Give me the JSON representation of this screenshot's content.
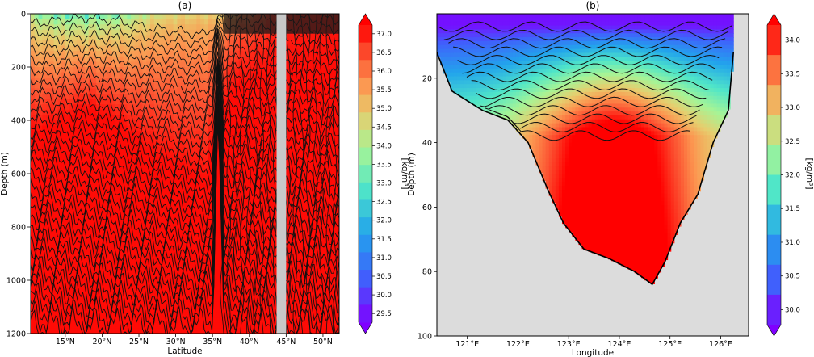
{
  "chart_data": [
    {
      "type": "heatmap",
      "title": "(a)",
      "xlabel": "Latitude",
      "ylabel": "Depth (m)",
      "x_ticks": [
        "15°N",
        "20°N",
        "25°N",
        "30°N",
        "35°N",
        "40°N",
        "45°N",
        "50°N"
      ],
      "x_values": [
        15,
        20,
        25,
        30,
        35,
        40,
        45,
        50
      ],
      "xlim": [
        10.3,
        52.2
      ],
      "y_ticks": [
        "0",
        "200",
        "400",
        "600",
        "800",
        "1000",
        "1200"
      ],
      "y_values": [
        0,
        200,
        400,
        600,
        800,
        1000,
        1200
      ],
      "ylim": [
        0,
        1200
      ],
      "y_inverted": true,
      "colorbar": {
        "label": "[kg/m³]",
        "ticks": [
          "29.5",
          "30.0",
          "30.5",
          "31.0",
          "31.5",
          "32.0",
          "32.5",
          "33.0",
          "33.5",
          "34.0",
          "34.5",
          "35.0",
          "35.5",
          "36.0",
          "36.5",
          "37.0"
        ],
        "min": 29.5,
        "max": 37.0,
        "extend": "both",
        "colormap": "rainbow"
      },
      "profile": [
        {
          "lat": 10.3,
          "surface": 33.5,
          "mixed_depth": 130
        },
        {
          "lat": 14.0,
          "surface": 33.0,
          "mixed_depth": 110
        },
        {
          "lat": 18.0,
          "surface": 32.8,
          "mixed_depth": 90
        },
        {
          "lat": 22.0,
          "surface": 33.2,
          "mixed_depth": 110
        },
        {
          "lat": 27.0,
          "surface": 34.2,
          "mixed_depth": 160
        },
        {
          "lat": 31.0,
          "surface": 34.5,
          "mixed_depth": 180
        },
        {
          "lat": 34.0,
          "surface": 34.6,
          "mixed_depth": 200
        },
        {
          "lat": 35.6,
          "surface": 34.5,
          "mixed_depth": 120
        },
        {
          "lat": 38.0,
          "surface": 35.3,
          "mixed_depth": 60
        },
        {
          "lat": 43.5,
          "surface": 36.5,
          "mixed_depth": 40
        },
        {
          "lat": 52.2,
          "surface": 36.7,
          "mixed_depth": 40
        }
      ],
      "deep_value": 36.9,
      "masked_lat_range": [
        43.7,
        45.0
      ],
      "colors": {
        "mask": "#c8c8c8",
        "contour": "#111111"
      }
    },
    {
      "type": "heatmap",
      "title": "(b)",
      "xlabel": "Longitude",
      "ylabel": "Depth (m)",
      "x_ticks": [
        "121°E",
        "122°E",
        "123°E",
        "124°E",
        "125°E",
        "126°E"
      ],
      "x_values": [
        121,
        122,
        123,
        124,
        125,
        126
      ],
      "xlim": [
        120.4,
        126.55
      ],
      "y_ticks": [
        "20",
        "40",
        "60",
        "80",
        "100"
      ],
      "y_values": [
        20,
        40,
        60,
        80,
        100
      ],
      "ylim": [
        0,
        100
      ],
      "y_inverted": true,
      "colorbar": {
        "label": "[kg/m³]",
        "ticks": [
          "30.0",
          "30.5",
          "31.0",
          "31.5",
          "32.0",
          "32.5",
          "33.0",
          "33.5",
          "34.0"
        ],
        "min": 29.9,
        "max": 34.0,
        "extend": "both",
        "colormap": "rainbow"
      },
      "bathymetry": [
        {
          "lon": 120.4,
          "depth": 12
        },
        {
          "lon": 120.7,
          "depth": 24
        },
        {
          "lon": 121.3,
          "depth": 30
        },
        {
          "lon": 121.8,
          "depth": 33
        },
        {
          "lon": 122.2,
          "depth": 40
        },
        {
          "lon": 122.6,
          "depth": 55
        },
        {
          "lon": 122.9,
          "depth": 65
        },
        {
          "lon": 123.3,
          "depth": 73
        },
        {
          "lon": 123.8,
          "depth": 76
        },
        {
          "lon": 124.3,
          "depth": 80
        },
        {
          "lon": 124.65,
          "depth": 84
        },
        {
          "lon": 124.9,
          "depth": 77
        },
        {
          "lon": 125.2,
          "depth": 65
        },
        {
          "lon": 125.55,
          "depth": 56
        },
        {
          "lon": 125.85,
          "depth": 40
        },
        {
          "lon": 126.15,
          "depth": 30
        },
        {
          "lon": 126.25,
          "depth": 12
        }
      ],
      "surface_value": 30.0,
      "core_value": 34.0,
      "core_lon": 123.9,
      "colors": {
        "land": "#dcdcdc",
        "contour": "#111111"
      }
    }
  ]
}
